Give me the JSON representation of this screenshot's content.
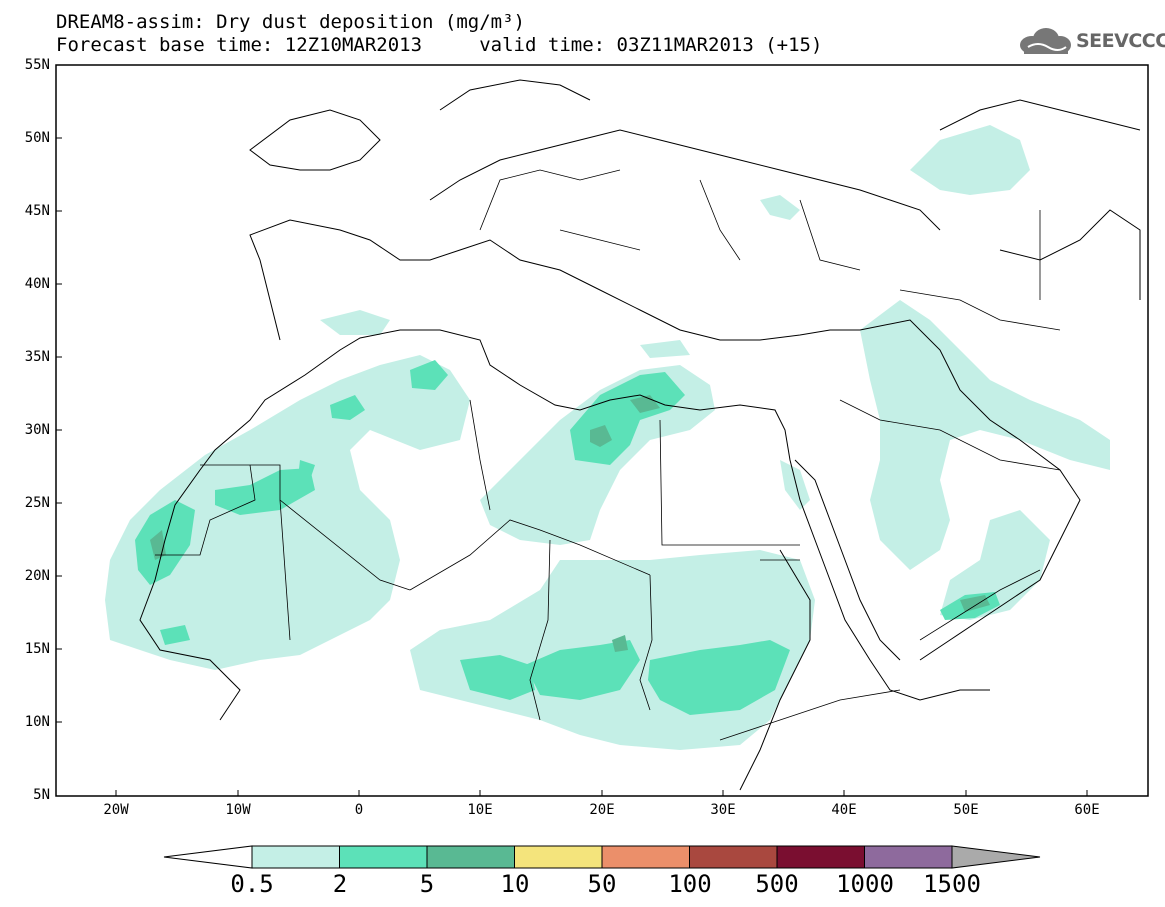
{
  "title": {
    "line1": "DREAM8-assim: Dry dust deposition (mg/m³)",
    "line2": "Forecast base time: 12Z10MAR2013     valid time: 03Z11MAR2013 (+15)"
  },
  "logo": {
    "text": "SEEVCCC",
    "icon": "cloud-icon"
  },
  "map": {
    "lat_labels": [
      "55N",
      "50N",
      "45N",
      "40N",
      "35N",
      "30N",
      "25N",
      "20N",
      "15N",
      "10N",
      "5N"
    ],
    "lon_labels": [
      "20W",
      "10W",
      "0",
      "10E",
      "20E",
      "30E",
      "40E",
      "50E",
      "60E"
    ],
    "lon_range": [
      -25,
      65
    ],
    "lat_range": [
      5,
      55
    ]
  },
  "colorbar": {
    "labels": [
      "0.5",
      "2",
      "5",
      "10",
      "50",
      "100",
      "500",
      "1000",
      "1500"
    ],
    "colors": [
      "#c4efe6",
      "#5ce1b8",
      "#59b993",
      "#f4e47c",
      "#eb8f6a",
      "#a9483f",
      "#7a0e30",
      "#8e6a9d",
      "#aaaaaa"
    ]
  }
}
